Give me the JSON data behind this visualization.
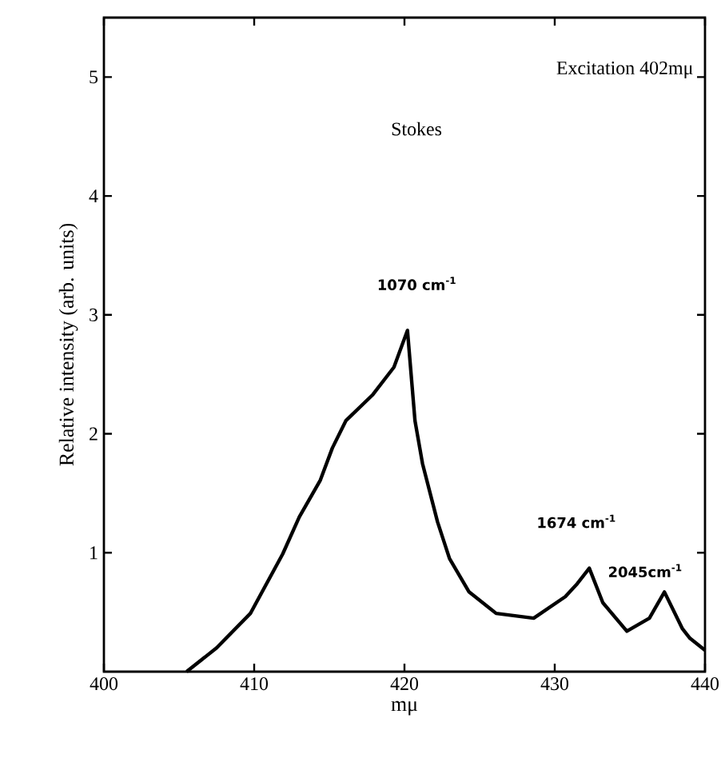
{
  "chart_data": {
    "type": "line",
    "xlabel": "mμ",
    "ylabel": "Relative intensity (arb. units)",
    "annotations": [
      "Excitation 402mμ",
      "Stokes",
      {
        "text": "1070 cm$^{-1}$",
        "x": 420.2,
        "y": 2.87
      },
      {
        "text": "1674 cm$^{-1}$",
        "x": 432.3,
        "y": 0.87
      },
      {
        "text": "2045cm$^{-1}$",
        "x": 437.3,
        "y": 0.67
      }
    ],
    "xlim": [
      400,
      440
    ],
    "xticks": [
      400,
      410,
      420,
      430,
      440
    ],
    "ylim": [
      0,
      5.5
    ],
    "yticks": [
      1,
      2,
      3,
      4,
      5
    ],
    "grid": false,
    "marker": "none",
    "line_style": "solid",
    "series": [
      {
        "color": "#000000",
        "x": [
          405.5,
          407.5,
          409.75,
          411.9,
          413,
          414.4,
          415.2,
          416.1,
          417.9,
          419.3,
          420.2,
          420.7,
          421.2,
          422.2,
          423,
          424.3,
          426.1,
          428.6,
          430.7,
          431.5,
          432.3,
          433.2,
          434.8,
          436.3,
          437.3,
          438.5,
          439,
          440
        ],
        "values": [
          0,
          0.2,
          0.49,
          0.99,
          1.3,
          1.61,
          1.88,
          2.11,
          2.33,
          2.56,
          2.87,
          2.11,
          1.75,
          1.26,
          0.95,
          0.67,
          0.49,
          0.45,
          0.63,
          0.74,
          0.87,
          0.58,
          0.34,
          0.45,
          0.67,
          0.36,
          0.28,
          0.18
        ]
      }
    ]
  }
}
